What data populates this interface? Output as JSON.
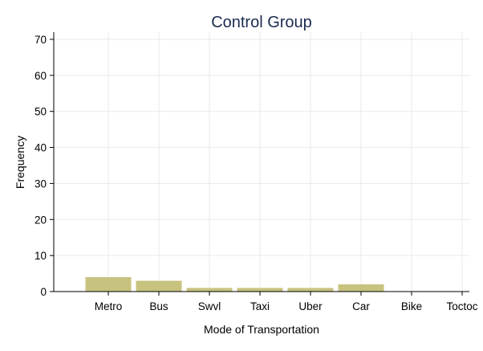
{
  "chart_data": {
    "type": "bar",
    "title": "Control Group",
    "xlabel": "Mode of Transportation",
    "ylabel": "Frequency",
    "categories": [
      "Metro",
      "Bus",
      "Swvl",
      "Taxi",
      "Uber",
      "Car",
      "Bike",
      "Toctoc"
    ],
    "values": [
      4,
      3,
      1,
      1,
      1,
      2,
      0,
      0
    ],
    "ylim": [
      0,
      72
    ],
    "yticks": [
      0,
      10,
      20,
      30,
      40,
      50,
      60,
      70
    ],
    "grid": true,
    "bar_color": "#c8c27f"
  }
}
